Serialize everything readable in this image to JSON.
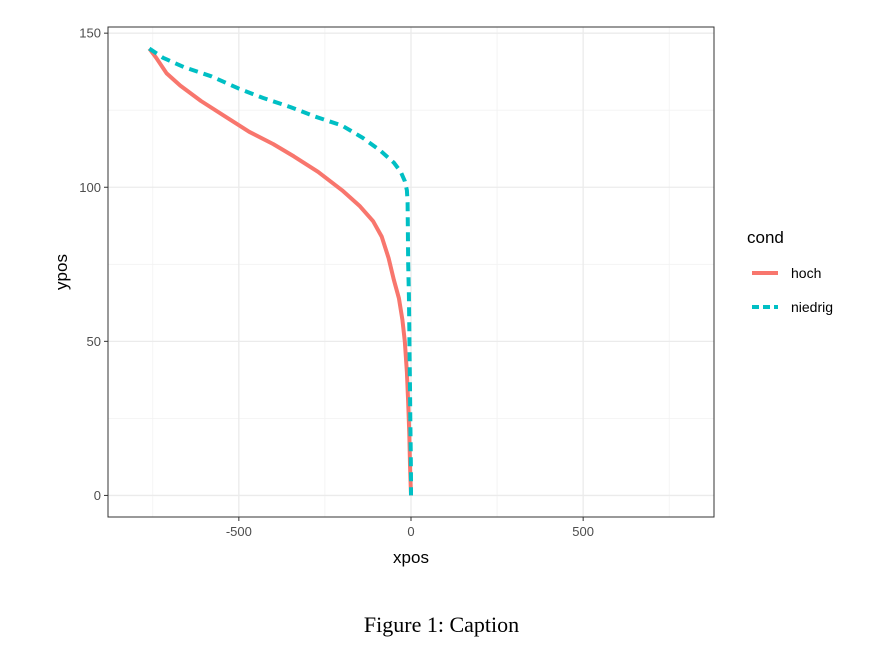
{
  "caption": "Figure 1: Caption",
  "chart_data": {
    "type": "line",
    "xlabel": "xpos",
    "ylabel": "ypos",
    "xlim": [
      -880,
      880
    ],
    "ylim": [
      -7,
      152
    ],
    "x_ticks": [
      -500,
      0,
      500
    ],
    "x_tick_labels": [
      "-500",
      "0",
      "500"
    ],
    "y_ticks": [
      0,
      50,
      100,
      150
    ],
    "y_tick_labels": [
      "0",
      "50",
      "100",
      "150"
    ],
    "grid": true,
    "legend": {
      "title": "cond",
      "position": "right"
    },
    "series": [
      {
        "name": "hoch",
        "color": "#F8766D",
        "dash": "solid",
        "points": [
          [
            -760,
            145
          ],
          [
            -740,
            142
          ],
          [
            -710,
            137
          ],
          [
            -670,
            133
          ],
          [
            -610,
            128
          ],
          [
            -540,
            123
          ],
          [
            -470,
            118
          ],
          [
            -400,
            114
          ],
          [
            -340,
            110
          ],
          [
            -270,
            105
          ],
          [
            -200,
            99
          ],
          [
            -150,
            94
          ],
          [
            -110,
            89
          ],
          [
            -85,
            84
          ],
          [
            -65,
            77
          ],
          [
            -50,
            70
          ],
          [
            -35,
            64
          ],
          [
            -25,
            57
          ],
          [
            -18,
            50
          ],
          [
            -12,
            40
          ],
          [
            -8,
            30
          ],
          [
            -5,
            20
          ],
          [
            -3,
            10
          ],
          [
            0,
            0
          ]
        ]
      },
      {
        "name": "niedrig",
        "color": "#00BFC4",
        "dash": "dashed",
        "points": [
          [
            -760,
            145
          ],
          [
            -720,
            142
          ],
          [
            -660,
            139
          ],
          [
            -580,
            136
          ],
          [
            -500,
            132
          ],
          [
            -430,
            129
          ],
          [
            -350,
            126
          ],
          [
            -280,
            123
          ],
          [
            -200,
            120
          ],
          [
            -140,
            116
          ],
          [
            -90,
            112
          ],
          [
            -50,
            108
          ],
          [
            -30,
            105
          ],
          [
            -18,
            102
          ],
          [
            -12,
            99
          ],
          [
            -10,
            95
          ],
          [
            -9,
            85
          ],
          [
            -8,
            75
          ],
          [
            -6,
            65
          ],
          [
            -5,
            55
          ],
          [
            -4,
            45
          ],
          [
            -3,
            35
          ],
          [
            -2,
            25
          ],
          [
            -1,
            15
          ],
          [
            0,
            5
          ],
          [
            0,
            0
          ]
        ]
      }
    ]
  }
}
